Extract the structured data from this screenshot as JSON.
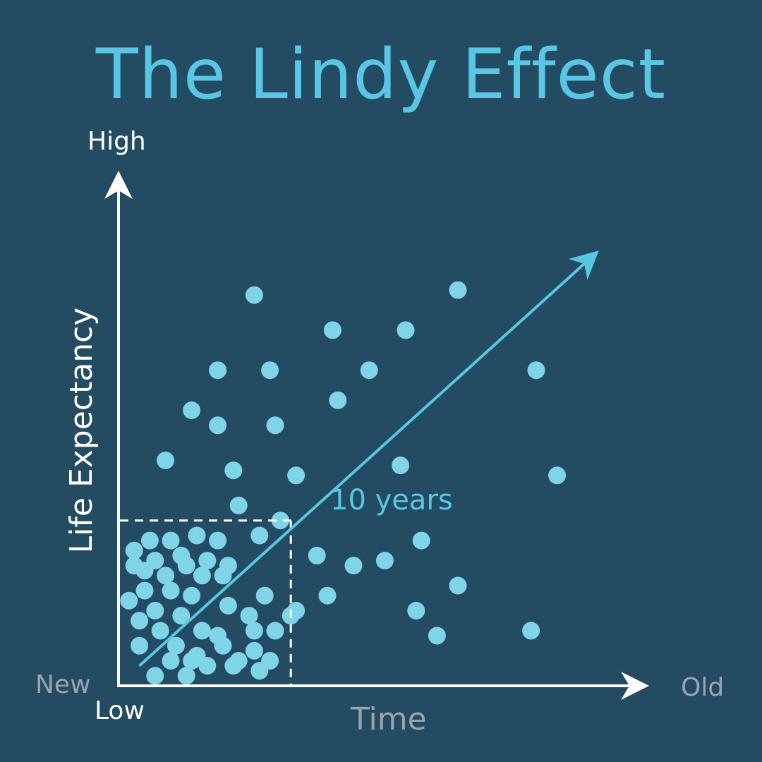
{
  "title": "The Lindy Effect",
  "axes": {
    "y_label": "Life Expectancy",
    "y_high": "High",
    "y_low": "Low",
    "x_label": "Time",
    "x_start": "New",
    "x_end": "Old"
  },
  "annotation": "10 years",
  "colors": {
    "background": "#234b61",
    "accent": "#59c7e4",
    "dots": "#7fd4e8",
    "axis": "#ffffff",
    "muted_text": "#9aa5ab"
  },
  "chart_data": {
    "type": "scatter",
    "x_range": [
      0,
      1
    ],
    "y_range": [
      0,
      1
    ],
    "reference_point": {
      "x": 0.33,
      "y": 0.33,
      "label": "10 years"
    },
    "trend": {
      "from": [
        0.04,
        0.04
      ],
      "to": [
        0.9,
        0.85
      ]
    },
    "points": [
      [
        0.26,
        0.78
      ],
      [
        0.41,
        0.71
      ],
      [
        0.55,
        0.71
      ],
      [
        0.65,
        0.79
      ],
      [
        0.19,
        0.63
      ],
      [
        0.29,
        0.63
      ],
      [
        0.48,
        0.63
      ],
      [
        0.8,
        0.63
      ],
      [
        0.14,
        0.55
      ],
      [
        0.19,
        0.52
      ],
      [
        0.3,
        0.52
      ],
      [
        0.42,
        0.57
      ],
      [
        0.09,
        0.45
      ],
      [
        0.22,
        0.43
      ],
      [
        0.34,
        0.42
      ],
      [
        0.54,
        0.44
      ],
      [
        0.84,
        0.42
      ],
      [
        0.23,
        0.36
      ],
      [
        0.27,
        0.3
      ],
      [
        0.31,
        0.33
      ],
      [
        0.58,
        0.29
      ],
      [
        0.38,
        0.26
      ],
      [
        0.45,
        0.24
      ],
      [
        0.51,
        0.25
      ],
      [
        0.65,
        0.2
      ],
      [
        0.4,
        0.18
      ],
      [
        0.57,
        0.15
      ],
      [
        0.34,
        0.15
      ],
      [
        0.61,
        0.1
      ],
      [
        0.79,
        0.11
      ],
      [
        0.03,
        0.27
      ],
      [
        0.06,
        0.29
      ],
      [
        0.1,
        0.29
      ],
      [
        0.15,
        0.3
      ],
      [
        0.19,
        0.29
      ],
      [
        0.07,
        0.25
      ],
      [
        0.12,
        0.26
      ],
      [
        0.17,
        0.25
      ],
      [
        0.21,
        0.24
      ],
      [
        0.03,
        0.24
      ],
      [
        0.05,
        0.23
      ],
      [
        0.09,
        0.22
      ],
      [
        0.13,
        0.24
      ],
      [
        0.16,
        0.22
      ],
      [
        0.2,
        0.22
      ],
      [
        0.05,
        0.19
      ],
      [
        0.1,
        0.19
      ],
      [
        0.14,
        0.18
      ],
      [
        0.02,
        0.17
      ],
      [
        0.07,
        0.15
      ],
      [
        0.12,
        0.14
      ],
      [
        0.21,
        0.16
      ],
      [
        0.28,
        0.18
      ],
      [
        0.04,
        0.13
      ],
      [
        0.08,
        0.11
      ],
      [
        0.16,
        0.11
      ],
      [
        0.19,
        0.1
      ],
      [
        0.25,
        0.14
      ],
      [
        0.26,
        0.11
      ],
      [
        0.04,
        0.08
      ],
      [
        0.11,
        0.08
      ],
      [
        0.15,
        0.06
      ],
      [
        0.2,
        0.08
      ],
      [
        0.23,
        0.05
      ],
      [
        0.26,
        0.07
      ],
      [
        0.1,
        0.05
      ],
      [
        0.14,
        0.05
      ],
      [
        0.17,
        0.04
      ],
      [
        0.22,
        0.04
      ],
      [
        0.27,
        0.03
      ],
      [
        0.07,
        0.02
      ],
      [
        0.13,
        0.02
      ],
      [
        0.29,
        0.05
      ],
      [
        0.3,
        0.11
      ],
      [
        0.33,
        0.14
      ]
    ]
  }
}
